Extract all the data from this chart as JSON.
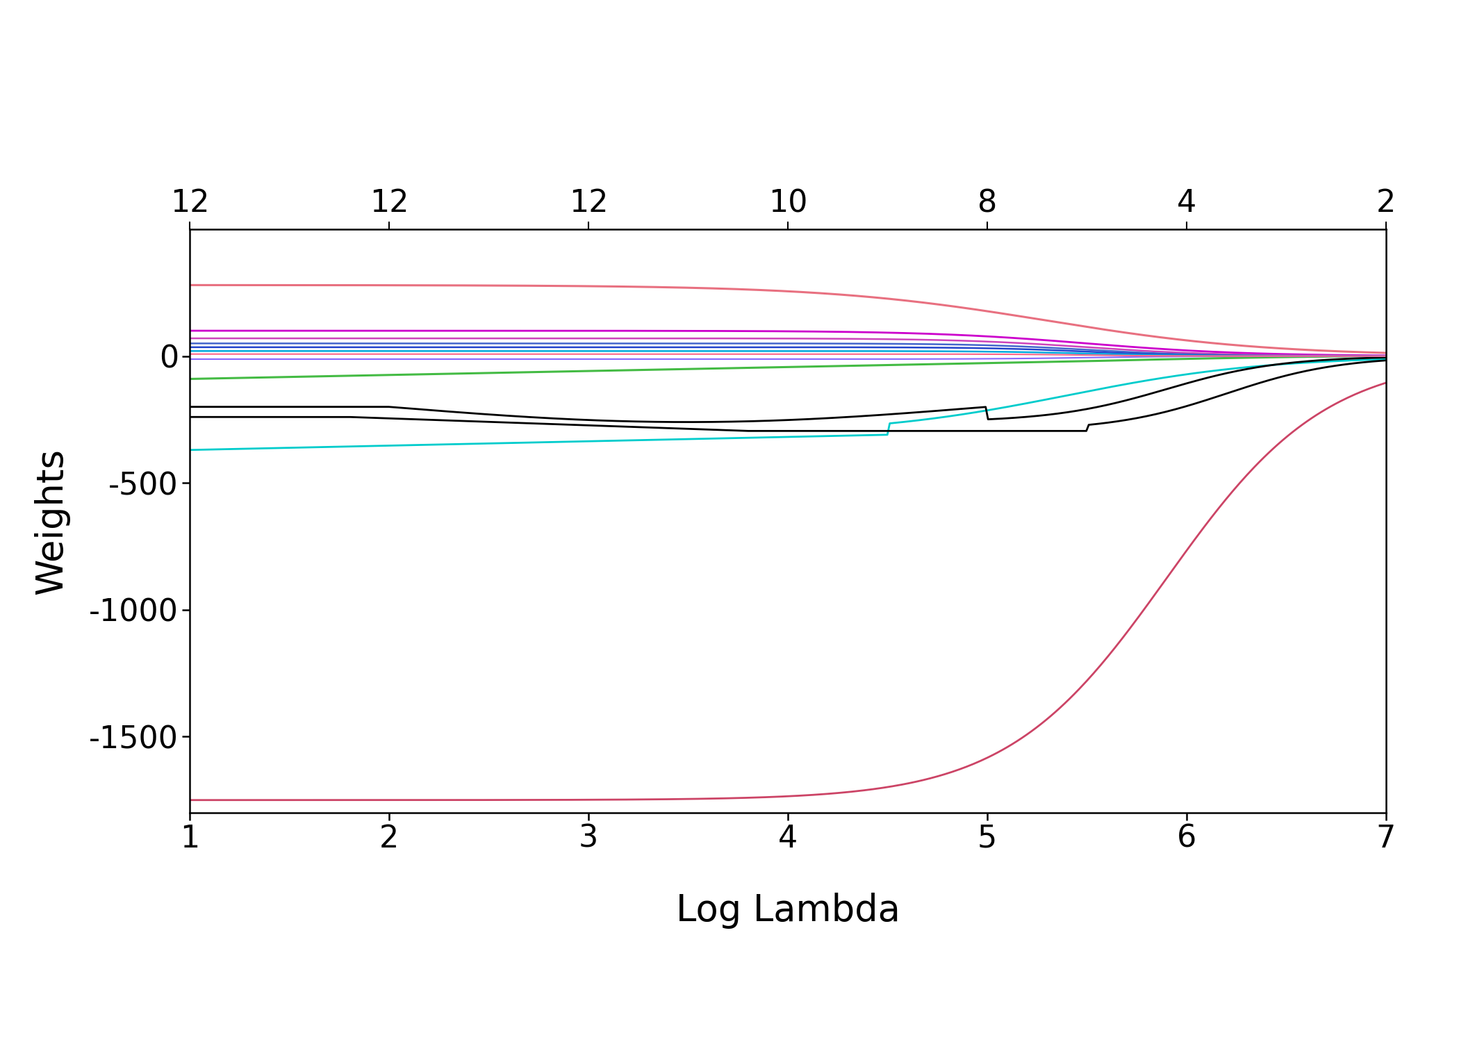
{
  "xlabel": "Log Lambda",
  "ylabel": "Weights",
  "xlim": [
    1,
    7
  ],
  "ylim": [
    -1800,
    500
  ],
  "x_ticks": [
    1,
    2,
    3,
    4,
    5,
    6,
    7
  ],
  "y_ticks": [
    0,
    -500,
    -1000,
    -1500
  ],
  "top_tick_positions": [
    1.0,
    2.0,
    3.0,
    4.0,
    5.0,
    6.0,
    7.0
  ],
  "top_tick_labels": [
    "12",
    "12",
    "12",
    "10",
    "8",
    "4",
    "2"
  ],
  "background_color": "#ffffff",
  "curve_colors": {
    "pink_pos": "#e8708a",
    "rose_neg": "#cc4466",
    "green": "#44bb44",
    "cyan": "#00cccc",
    "black": "#000000",
    "purple": "#cc00cc",
    "magenta": "#cc00cc",
    "blue": "#4466cc",
    "teal": "#0099bb",
    "light_blue": "#7788ff",
    "dark_blue": "#0000cc",
    "red_small": "#cc3333"
  }
}
